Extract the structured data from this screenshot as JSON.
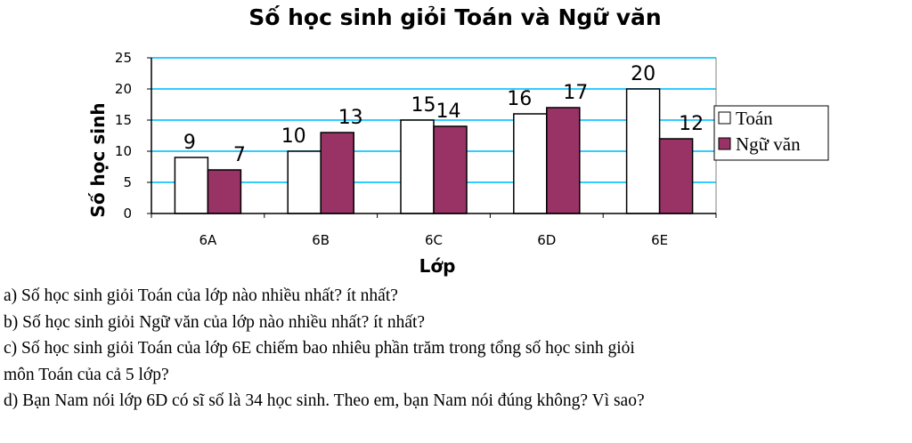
{
  "chart_data": {
    "type": "bar",
    "title": "Số học sinh giỏi Toán và Ngữ văn",
    "xlabel": "Lớp",
    "ylabel": "Số học sinh",
    "categories": [
      "6A",
      "6B",
      "6C",
      "6D",
      "6E"
    ],
    "series": [
      {
        "name": "Toán",
        "values": [
          9,
          10,
          15,
          16,
          20
        ],
        "color": "#ffffff"
      },
      {
        "name": "Ngữ văn",
        "values": [
          7,
          13,
          14,
          17,
          12
        ],
        "color": "#993366"
      }
    ],
    "ylim": [
      0,
      25
    ],
    "yticks": [
      0,
      5,
      10,
      15,
      20,
      25
    ],
    "grid": true,
    "grid_color": "#33ccff",
    "legend_position": "right"
  },
  "questions": [
    "a) Số học sinh giỏi Toán của lớp nào nhiều nhất? ít nhất?",
    "b) Số học sinh giỏi Ngữ văn của lớp nào nhiều nhất? ít nhất?",
    "c) Số học sinh giỏi Toán của lớp 6E chiếm bao nhiêu phần trăm trong tổng số học sinh giỏi",
    "môn Toán của cả 5 lớp?",
    "d) Bạn Nam nói lớp 6D có sĩ số là 34 học sinh. Theo em, bạn Nam nói đúng không? Vì sao?"
  ]
}
